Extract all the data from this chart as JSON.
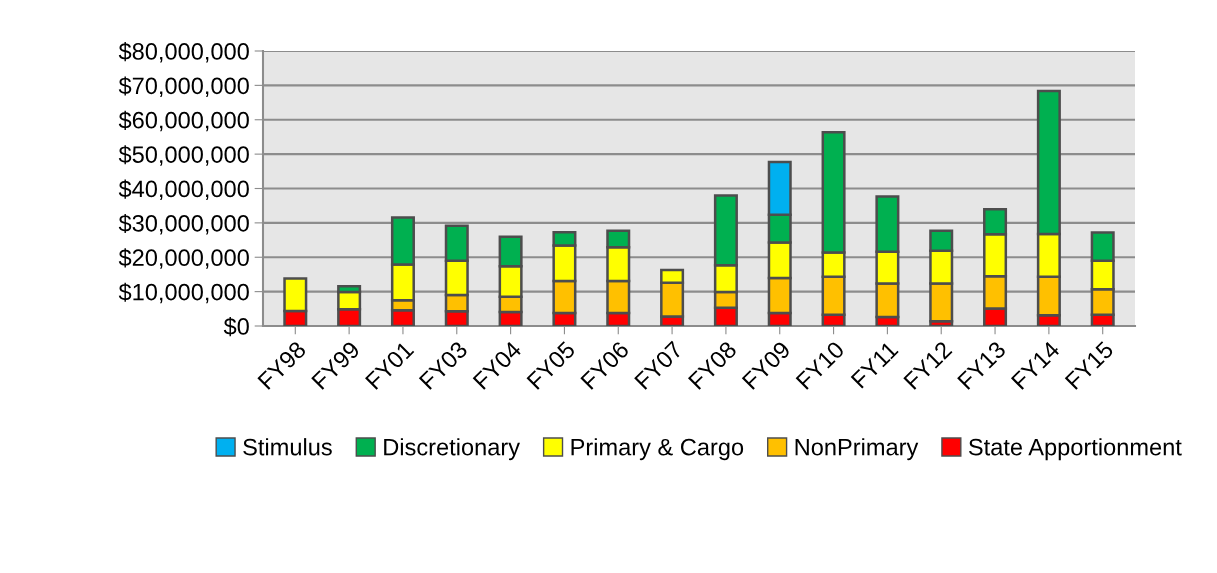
{
  "chart_data": {
    "type": "bar",
    "stacked": true,
    "categories": [
      "FY98",
      "FY99",
      "FY01",
      "FY03",
      "FY04",
      "FY05",
      "FY06",
      "FY07",
      "FY08",
      "FY09",
      "FY10",
      "FY11",
      "FY12",
      "FY13",
      "FY14",
      "FY15"
    ],
    "series": [
      {
        "name": "State Apportionment",
        "color": "#ff0000",
        "values": [
          4400000,
          4900000,
          4600000,
          4300000,
          4100000,
          3800000,
          3800000,
          2800000,
          5300000,
          3800000,
          3300000,
          2600000,
          1400000,
          5100000,
          3100000,
          3300000
        ]
      },
      {
        "name": "NonPrimary",
        "color": "#ffc000",
        "values": [
          null,
          null,
          2900000,
          4700000,
          4400000,
          9300000,
          9300000,
          9800000,
          4600000,
          10200000,
          11000000,
          9800000,
          11000000,
          9400000,
          11200000,
          7400000
        ]
      },
      {
        "name": "Primary & Cargo",
        "color": "#ffff00",
        "values": [
          9400000,
          5000000,
          10400000,
          10000000,
          8900000,
          10300000,
          9800000,
          3700000,
          7800000,
          10300000,
          7100000,
          9200000,
          9500000,
          12200000,
          12500000,
          8300000
        ]
      },
      {
        "name": "Discretionary",
        "color": "#00b050",
        "values": [
          null,
          1700000,
          13700000,
          10200000,
          8600000,
          3900000,
          4800000,
          null,
          20300000,
          8100000,
          35000000,
          16100000,
          5800000,
          7300000,
          41600000,
          8200000
        ]
      },
      {
        "name": "Stimulus",
        "color": "#00b0f0",
        "values": [
          null,
          null,
          null,
          null,
          null,
          null,
          null,
          null,
          null,
          15300000,
          null,
          null,
          null,
          null,
          null,
          null
        ]
      }
    ],
    "ylim": [
      0,
      80000000
    ],
    "yticks": [
      {
        "value": 0,
        "label": "$0"
      },
      {
        "value": 10000000,
        "label": "$10,000,000"
      },
      {
        "value": 20000000,
        "label": "$20,000,000"
      },
      {
        "value": 30000000,
        "label": "$30,000,000"
      },
      {
        "value": 40000000,
        "label": "$40,000,000"
      },
      {
        "value": 50000000,
        "label": "$50,000,000"
      },
      {
        "value": 60000000,
        "label": "$60,000,000"
      },
      {
        "value": 70000000,
        "label": "$70,000,000"
      },
      {
        "value": 80000000,
        "label": "$80,000,000"
      }
    ],
    "grid": "y",
    "legend": "bottom"
  }
}
